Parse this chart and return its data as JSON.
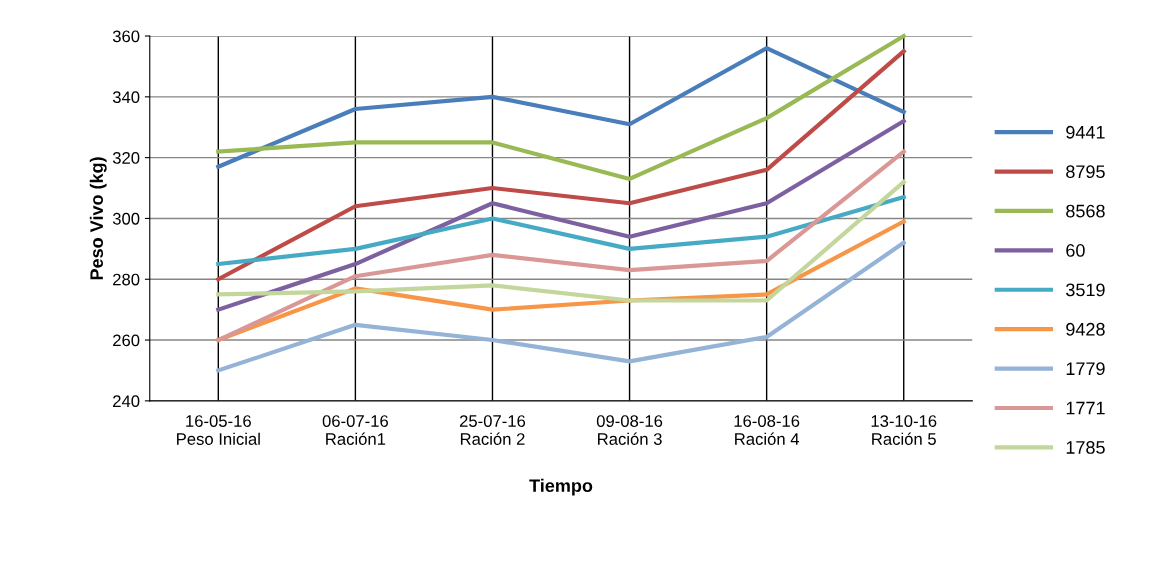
{
  "chart_data": {
    "type": "line",
    "xlabel": "Tiempo",
    "ylabel": "Peso Vivo (kg)",
    "categories": [
      "16-05-16\nPeso Inicial",
      "06-07-16\nRación1",
      "25-07-16\nRación 2",
      "09-08-16\nRación 3",
      "16-08-16\nRación 4",
      "13-10-16\nRación 5"
    ],
    "series": [
      {
        "name": "9441",
        "color": "#4a7ebb",
        "values": [
          317,
          336,
          340,
          331,
          356,
          335
        ]
      },
      {
        "name": "8795",
        "color": "#be4b48",
        "values": [
          280,
          304,
          310,
          305,
          316,
          355
        ]
      },
      {
        "name": "8568",
        "color": "#98b954",
        "values": [
          322,
          325,
          325,
          313,
          333,
          360
        ]
      },
      {
        "name": "60",
        "color": "#7d60a0",
        "values": [
          270,
          285,
          305,
          294,
          305,
          332
        ]
      },
      {
        "name": "3519",
        "color": "#46aac5",
        "values": [
          285,
          290,
          300,
          290,
          294,
          307
        ]
      },
      {
        "name": "9428",
        "color": "#f79646",
        "values": [
          260,
          277,
          270,
          273,
          275,
          299
        ]
      },
      {
        "name": "1779",
        "color": "#95b3d7",
        "values": [
          250,
          265,
          260,
          253,
          261,
          292
        ]
      },
      {
        "name": "1771",
        "color": "#d99795",
        "values": [
          260,
          281,
          288,
          283,
          286,
          322
        ]
      },
      {
        "name": "1785",
        "color": "#c3d69b",
        "values": [
          275,
          276,
          278,
          273,
          273,
          312
        ]
      }
    ],
    "ylim": [
      240,
      360
    ],
    "yticks": [
      240,
      260,
      280,
      300,
      320,
      340,
      360
    ],
    "grid": true,
    "legend": "right",
    "marker": "none",
    "line_style": "solid"
  }
}
